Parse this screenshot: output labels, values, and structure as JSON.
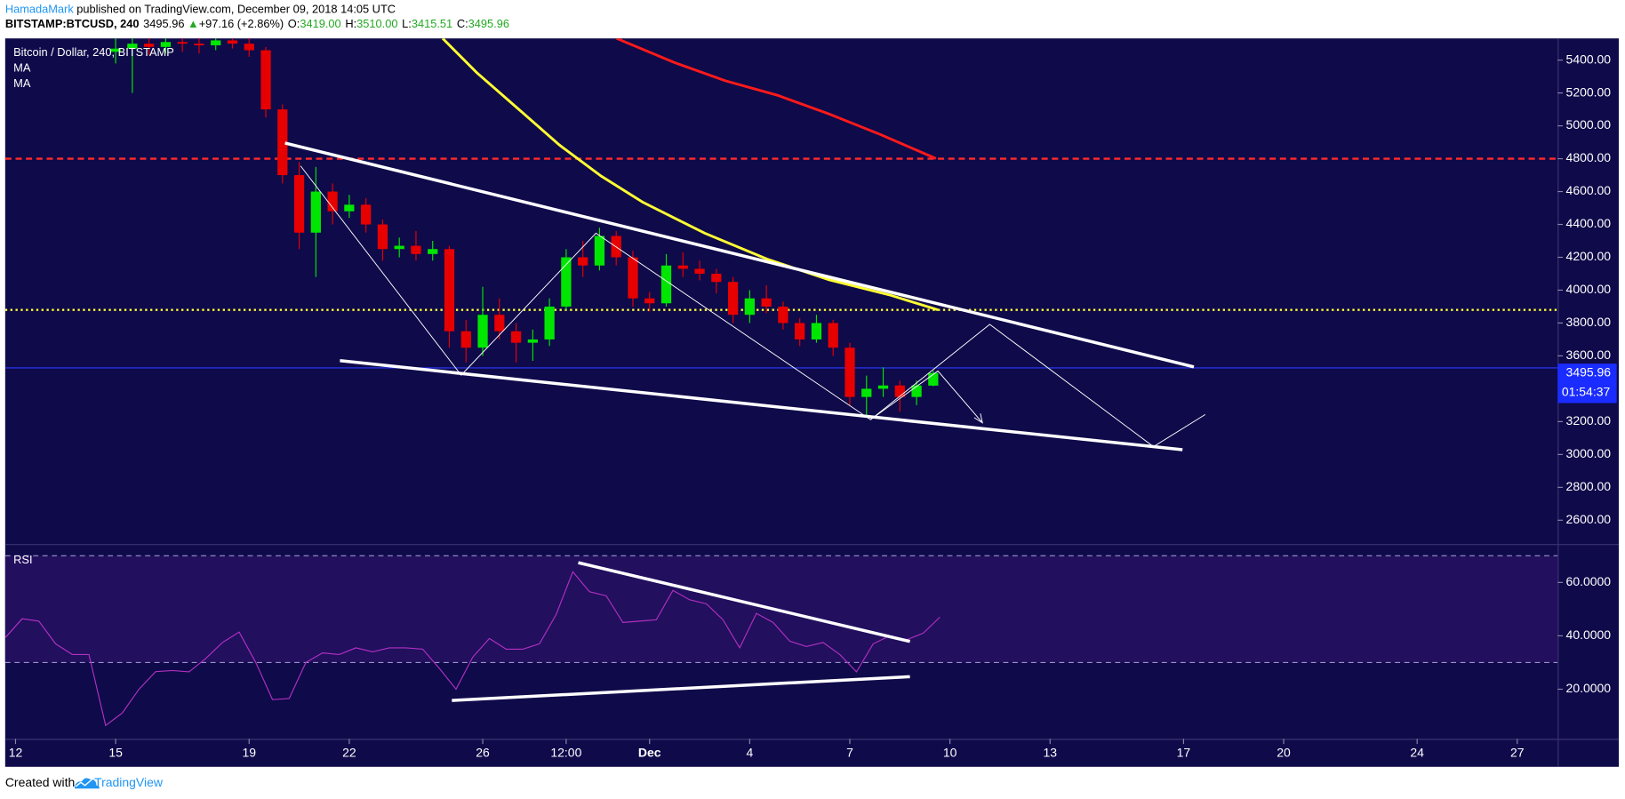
{
  "header": {
    "author": "HamadaMark",
    "published": " published on TradingView.com, December 09, 2018 14:05 UTC",
    "symbol": "BITSTAMP:BTCUSD, 240",
    "last": "3495.96",
    "arrow": "▲",
    "change": "+97.16 (+2.86%)",
    "o_label": "O:",
    "o": "3419.00",
    "h_label": "H:",
    "h": "3510.00",
    "l_label": "L:",
    "l": "3415.51",
    "c_label": "C:",
    "c": "3495.96"
  },
  "footer": {
    "created": "Created with",
    "brand": "TradingView"
  },
  "chart_data": {
    "type": "candlestick",
    "title": "Bitcoin / Dollar, 240, BITSTAMP",
    "up_color": "#00e600",
    "down_color": "#e60000",
    "x": [
      3.0,
      3.5,
      4.0,
      4.5,
      5.0,
      5.5,
      6.0,
      6.5,
      7.0,
      7.5,
      8.0,
      8.5,
      9.0,
      9.5,
      10.0,
      10.5,
      11.0,
      11.5,
      12.0,
      12.5,
      13.0,
      13.5,
      14.0,
      14.5,
      15.0,
      15.5,
      16.0,
      16.5,
      17.0,
      17.5,
      18.0,
      18.5,
      19.0,
      19.5,
      20.0,
      20.5,
      21.0,
      21.5,
      22.0,
      22.5,
      23.0,
      23.5,
      24.0,
      24.5,
      25.0,
      25.5,
      26.0,
      26.5,
      27.0,
      27.5
    ],
    "open": [
      5450,
      5470,
      5500,
      5480,
      5510,
      5500,
      5490,
      5520,
      5500,
      5460,
      5100,
      4700,
      4350,
      4600,
      4480,
      4520,
      4400,
      4250,
      4270,
      4220,
      4250,
      3750,
      3650,
      3850,
      3750,
      3680,
      3700,
      3900,
      4200,
      4150,
      4330,
      4200,
      3950,
      3920,
      4150,
      4130,
      4100,
      4050,
      3850,
      3950,
      3900,
      3800,
      3700,
      3800,
      3650,
      3350,
      3400,
      3420,
      3350,
      3419.0
    ],
    "high": [
      5540,
      5560,
      5560,
      5570,
      5570,
      5560,
      5580,
      5580,
      5550,
      5480,
      5130,
      4780,
      4750,
      4650,
      4580,
      4560,
      4430,
      4320,
      4360,
      4300,
      4270,
      3820,
      4020,
      3950,
      3800,
      3760,
      3950,
      4250,
      4300,
      4380,
      4360,
      4240,
      3990,
      4220,
      4230,
      4180,
      4130,
      4080,
      4000,
      4030,
      3930,
      3830,
      3850,
      3820,
      3680,
      3480,
      3530,
      3450,
      3450,
      3510.0
    ],
    "low": [
      5380,
      5200,
      5430,
      5440,
      5450,
      5440,
      5460,
      5470,
      5420,
      5050,
      4650,
      4250,
      4080,
      4400,
      4440,
      4350,
      4180,
      4200,
      4180,
      4180,
      3650,
      3560,
      3600,
      3700,
      3560,
      3570,
      3660,
      3880,
      4080,
      4120,
      4150,
      3900,
      3870,
      3900,
      4080,
      4060,
      3980,
      3800,
      3800,
      3860,
      3760,
      3660,
      3680,
      3600,
      3300,
      3230,
      3350,
      3260,
      3300,
      3415.51
    ],
    "close": [
      5470,
      5500,
      5480,
      5510,
      5500,
      5490,
      5520,
      5500,
      5460,
      5100,
      4700,
      4350,
      4600,
      4480,
      4520,
      4400,
      4250,
      4270,
      4220,
      4250,
      3750,
      3650,
      3850,
      3750,
      3680,
      3700,
      3900,
      4200,
      4150,
      4330,
      4200,
      3950,
      3920,
      4150,
      4130,
      4100,
      4050,
      3850,
      3950,
      3900,
      3800,
      3700,
      3800,
      3650,
      3350,
      3400,
      3420,
      3350,
      3420,
      3495.96
    ],
    "xlim": [
      -0.31,
      46.21
    ],
    "xticks": [
      {
        "value": 0,
        "label": "12"
      },
      {
        "value": 3,
        "label": "15"
      },
      {
        "value": 7,
        "label": "19"
      },
      {
        "value": 10,
        "label": "22"
      },
      {
        "value": 14,
        "label": "26"
      },
      {
        "value": 16.5,
        "label": "12:00"
      },
      {
        "value": 19,
        "label": "Dec"
      },
      {
        "value": 22,
        "label": "4"
      },
      {
        "value": 25,
        "label": "7"
      },
      {
        "value": 28,
        "label": "10"
      },
      {
        "value": 31,
        "label": "13"
      },
      {
        "value": 35,
        "label": "17"
      },
      {
        "value": 38,
        "label": "20"
      },
      {
        "value": 42,
        "label": "24"
      },
      {
        "value": 45,
        "label": "27"
      }
    ],
    "ylim": [
      2455,
      5532
    ],
    "yticks": [
      {
        "value": 2600,
        "label": "2600.00"
      },
      {
        "value": 2800,
        "label": "2800.00"
      },
      {
        "value": 3000,
        "label": "3000.00"
      },
      {
        "value": 3200,
        "label": "3200.00"
      },
      {
        "value": 3400,
        "label": "3400.00"
      },
      {
        "value": 3600,
        "label": "3600.00"
      },
      {
        "value": 3800,
        "label": "3800.00"
      },
      {
        "value": 4000,
        "label": "4000.00"
      },
      {
        "value": 4200,
        "label": "4200.00"
      },
      {
        "value": 4400,
        "label": "4400.00"
      },
      {
        "value": 4600,
        "label": "4600.00"
      },
      {
        "value": 4800,
        "label": "4800.00"
      },
      {
        "value": 5000,
        "label": "5000.00"
      },
      {
        "value": 5200,
        "label": "5200.00"
      },
      {
        "value": 5400,
        "label": "5400.00"
      }
    ],
    "moving_averages": [
      {
        "name": "MA",
        "color": "#ffff33",
        "x": [
          12.8,
          13.82,
          15.06,
          16.3,
          17.55,
          18.79,
          20.65,
          22.52,
          24.38,
          26.24,
          27.64
        ],
        "values": [
          5532,
          5324,
          5104,
          4883,
          4694,
          4536,
          4347,
          4189,
          4063,
          3968,
          3880
        ]
      },
      {
        "name": "MA",
        "color": "#ff1a1a",
        "x": [
          18.01,
          19.72,
          21.27,
          22.83,
          24.38,
          25.93,
          26.86,
          27.58
        ],
        "values": [
          5532,
          5387,
          5274,
          5186,
          5072,
          4946,
          4864,
          4801
        ]
      }
    ],
    "hlines": [
      {
        "value": 4800,
        "color": "#ff2a2a",
        "style": "dashed"
      },
      {
        "value": 3880,
        "color": "#ffff33",
        "style": "dotted"
      },
      {
        "value": 3527,
        "color": "#2a3cff",
        "style": "solid"
      }
    ],
    "last_price": {
      "label": "3495.96",
      "countdown": "01:54:37",
      "color": "#1a2cff"
    },
    "rsi": {
      "name": "RSI",
      "color": "#b030c0",
      "band_color": "#220f5e",
      "x": [
        -0.3,
        0.2,
        0.7,
        1.2,
        1.7,
        2.2,
        2.7,
        3.2,
        3.7,
        4.2,
        4.7,
        5.2,
        5.7,
        6.2,
        6.7,
        7.2,
        7.7,
        8.2,
        8.7,
        9.2,
        9.7,
        10.2,
        10.7,
        11.2,
        11.7,
        12.2,
        12.7,
        13.2,
        13.7,
        14.2,
        14.7,
        15.2,
        15.7,
        16.2,
        16.7,
        17.2,
        17.7,
        18.2,
        18.7,
        19.2,
        19.7,
        20.2,
        20.7,
        21.2,
        21.7,
        22.2,
        22.7,
        23.2,
        23.7,
        24.2,
        24.7,
        25.2,
        25.7,
        26.2,
        26.7,
        27.2,
        27.7
      ],
      "values": [
        39.4,
        46.4,
        45.5,
        37.0,
        33.0,
        33.0,
        6.4,
        11.1,
        20.0,
        26.6,
        27.0,
        26.5,
        31.5,
        37.5,
        41.4,
        30.0,
        16.1,
        16.5,
        30.0,
        33.6,
        33.0,
        35.5,
        34.0,
        35.5,
        35.5,
        35.0,
        27.8,
        20.0,
        32.0,
        39.0,
        35.0,
        35.0,
        37.0,
        48.0,
        64.0,
        56.5,
        55.0,
        45.0,
        45.5,
        46.0,
        57.0,
        53.5,
        52.0,
        46.0,
        35.5,
        48.4,
        45.0,
        38.0,
        36.0,
        37.5,
        33.0,
        26.5,
        37.0,
        40.0,
        38.5,
        41.0,
        47.0
      ],
      "ylim": [
        1.4,
        74
      ],
      "yticks": [
        {
          "value": 20,
          "label": "20.0000"
        },
        {
          "value": 40,
          "label": "40.0000"
        },
        {
          "value": 60,
          "label": "60.0000"
        }
      ],
      "bands": [
        70,
        30
      ]
    }
  }
}
